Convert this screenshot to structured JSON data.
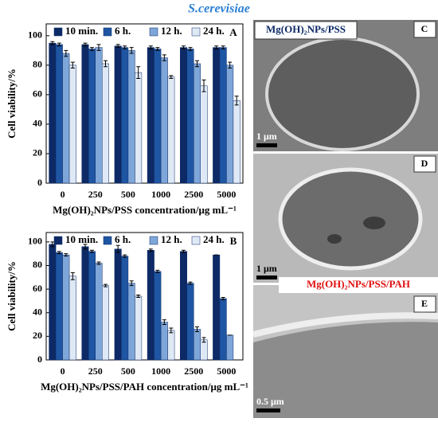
{
  "title": "S.cerevisiae",
  "chart_data": [
    {
      "type": "bar",
      "panel": "A",
      "categories": [
        "0",
        "250",
        "500",
        "1000",
        "2500",
        "5000"
      ],
      "x_label": "Mg(OH)₂NPs/PSS concentration/μg mL⁻¹",
      "y_label": "Cell viability/%",
      "ylim": [
        0,
        108
      ],
      "yticks": [
        0,
        20,
        40,
        60,
        80,
        100
      ],
      "series": [
        {
          "name": "10 min.",
          "color": "#0d2a66",
          "values": [
            95,
            94,
            93,
            92,
            92,
            92
          ],
          "errors": [
            1,
            1,
            1,
            1,
            1,
            1
          ]
        },
        {
          "name": "6 h.",
          "color": "#1f56a3",
          "values": [
            94,
            91,
            92,
            91,
            91,
            92
          ],
          "errors": [
            1,
            1,
            1,
            1,
            1,
            1
          ]
        },
        {
          "name": "12 h.",
          "color": "#7fa6d8",
          "values": [
            88,
            92,
            90,
            85,
            81,
            80
          ],
          "errors": [
            2,
            2,
            2,
            2,
            2,
            2
          ]
        },
        {
          "name": "24 h.",
          "color": "#dfe9f6",
          "values": [
            80,
            81,
            75,
            72,
            66,
            56
          ],
          "errors": [
            2,
            2,
            4,
            1,
            4,
            3
          ]
        }
      ]
    },
    {
      "type": "bar",
      "panel": "B",
      "categories": [
        "0",
        "250",
        "500",
        "1000",
        "2500",
        "5000"
      ],
      "x_label": "Mg(OH)₂NPs/PSS/PAH concentration/μg mL⁻¹",
      "y_label": "Cell viability/%",
      "ylim": [
        0,
        108
      ],
      "yticks": [
        0,
        20,
        40,
        60,
        80,
        100
      ],
      "series": [
        {
          "name": "10 min.",
          "color": "#0d2a66",
          "values": [
            98,
            96,
            94,
            93,
            92,
            89
          ],
          "errors": [
            2,
            2,
            3,
            1,
            1,
            0
          ]
        },
        {
          "name": "6 h.",
          "color": "#1f56a3",
          "values": [
            91,
            92,
            88,
            75,
            65,
            52
          ],
          "errors": [
            1,
            1,
            1,
            1,
            1,
            1
          ]
        },
        {
          "name": "12 h.",
          "color": "#7fa6d8",
          "values": [
            89,
            82,
            65,
            32,
            26,
            21
          ],
          "errors": [
            1,
            1,
            2,
            2,
            2,
            0
          ]
        },
        {
          "name": "24 h.",
          "color": "#dfe9f6",
          "values": [
            71,
            63,
            54,
            25,
            17,
            null
          ],
          "errors": [
            3,
            1,
            1,
            2,
            2,
            null
          ]
        }
      ]
    }
  ],
  "images": [
    {
      "panel": "C",
      "caption": "Mg(OH)₂NPs/PSS",
      "scale_bar": "1 μm"
    },
    {
      "panel": "D",
      "scale_bar": "1 μm"
    },
    {
      "panel": "E",
      "caption": "Mg(OH)₂NPs/PSS/PAH",
      "scale_bar": "0.5 μm"
    }
  ]
}
